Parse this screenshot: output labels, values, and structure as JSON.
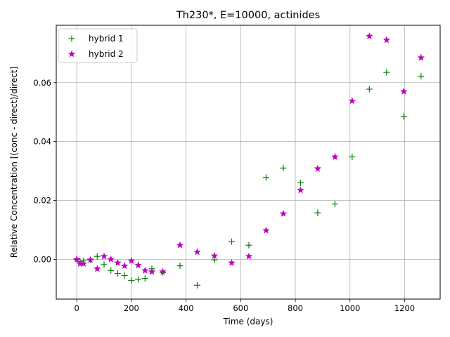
{
  "chart_data": {
    "type": "scatter",
    "title": "Th230*, E=10000, actinides",
    "xlabel": "Time (days)",
    "ylabel": "Relative Concentration [(conc - direct)/direct]",
    "xlim": [
      -75,
      1330
    ],
    "ylim": [
      -0.0135,
      0.0795
    ],
    "x_ticks": [
      0,
      200,
      400,
      600,
      800,
      1000,
      1200
    ],
    "y_ticks": [
      0.0,
      0.02,
      0.04,
      0.06
    ],
    "x_tick_labels": [
      "0",
      "200",
      "400",
      "600",
      "800",
      "1000",
      "1200"
    ],
    "y_tick_labels": [
      "0.00",
      "0.02",
      "0.04",
      "0.06"
    ],
    "grid": true,
    "legend_position": "top-left",
    "series": [
      {
        "name": "hybrid 1",
        "marker": "plus",
        "color": "#008000",
        "x": [
          0,
          12,
          25,
          50,
          75,
          100,
          125,
          150,
          175,
          200,
          225,
          250,
          275,
          315,
          378,
          441,
          504,
          567,
          630,
          693,
          756,
          819,
          882,
          945,
          1008,
          1071,
          1134,
          1197,
          1260
        ],
        "y": [
          0.0,
          -0.0008,
          -0.0005,
          -0.0002,
          0.001,
          -0.0018,
          -0.0038,
          -0.0048,
          -0.0055,
          -0.0072,
          -0.0068,
          -0.0065,
          -0.0032,
          -0.0045,
          -0.0022,
          -0.0088,
          -0.0002,
          0.006,
          0.0048,
          0.0278,
          0.031,
          0.026,
          0.0158,
          0.0188,
          0.0348,
          0.0578,
          0.0635,
          0.0485,
          0.0622
        ]
      },
      {
        "name": "hybrid 2",
        "marker": "star",
        "color": "#bf00bf",
        "x": [
          0,
          12,
          25,
          50,
          75,
          100,
          125,
          150,
          175,
          200,
          225,
          250,
          275,
          315,
          378,
          441,
          504,
          567,
          630,
          693,
          756,
          819,
          882,
          945,
          1008,
          1071,
          1134,
          1197,
          1260
        ],
        "y": [
          0.0,
          -0.0015,
          -0.0015,
          -0.0002,
          -0.0032,
          0.001,
          0.0,
          -0.0012,
          -0.0022,
          -0.0005,
          -0.002,
          -0.0038,
          -0.0042,
          -0.0042,
          0.0048,
          0.0025,
          0.0012,
          -0.0012,
          0.001,
          0.0098,
          0.0155,
          0.0235,
          0.0308,
          0.0348,
          0.0538,
          0.0758,
          0.0745,
          0.057,
          0.0685
        ]
      }
    ]
  }
}
